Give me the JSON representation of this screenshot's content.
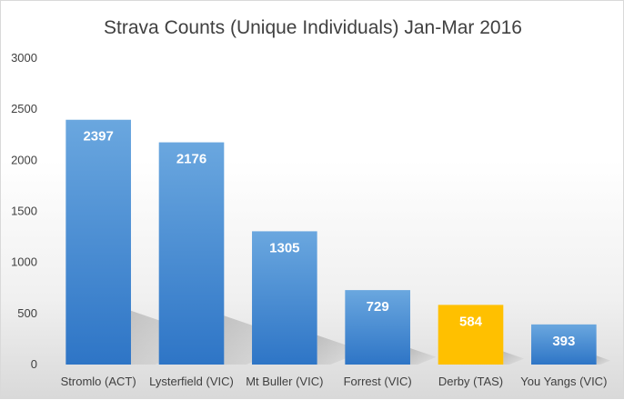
{
  "chart_data": {
    "type": "bar",
    "title": "Strava Counts (Unique Individuals) Jan-Mar 2016",
    "xlabel": "",
    "ylabel": "",
    "categories": [
      "Stromlo (ACT)",
      "Lysterfield (VIC)",
      "Mt Buller (VIC)",
      "Forrest (VIC)",
      "Derby (TAS)",
      "You Yangs (VIC)"
    ],
    "values": [
      2397,
      2176,
      1305,
      729,
      584,
      393
    ],
    "data_labels": [
      "2397",
      "2176",
      "1305",
      "729",
      "584",
      "393"
    ],
    "y_ticks": [
      "0",
      "500",
      "1000",
      "1500",
      "2000",
      "2500",
      "3000"
    ],
    "ylim": [
      0,
      3000
    ],
    "grid": false,
    "legend": "none",
    "colors": {
      "bar": "#5b9bd5",
      "bar_top": "#6aa7df",
      "bar_bottom": "#2e75c6",
      "highlight": "#ffc000",
      "highlight_index": 4
    }
  }
}
